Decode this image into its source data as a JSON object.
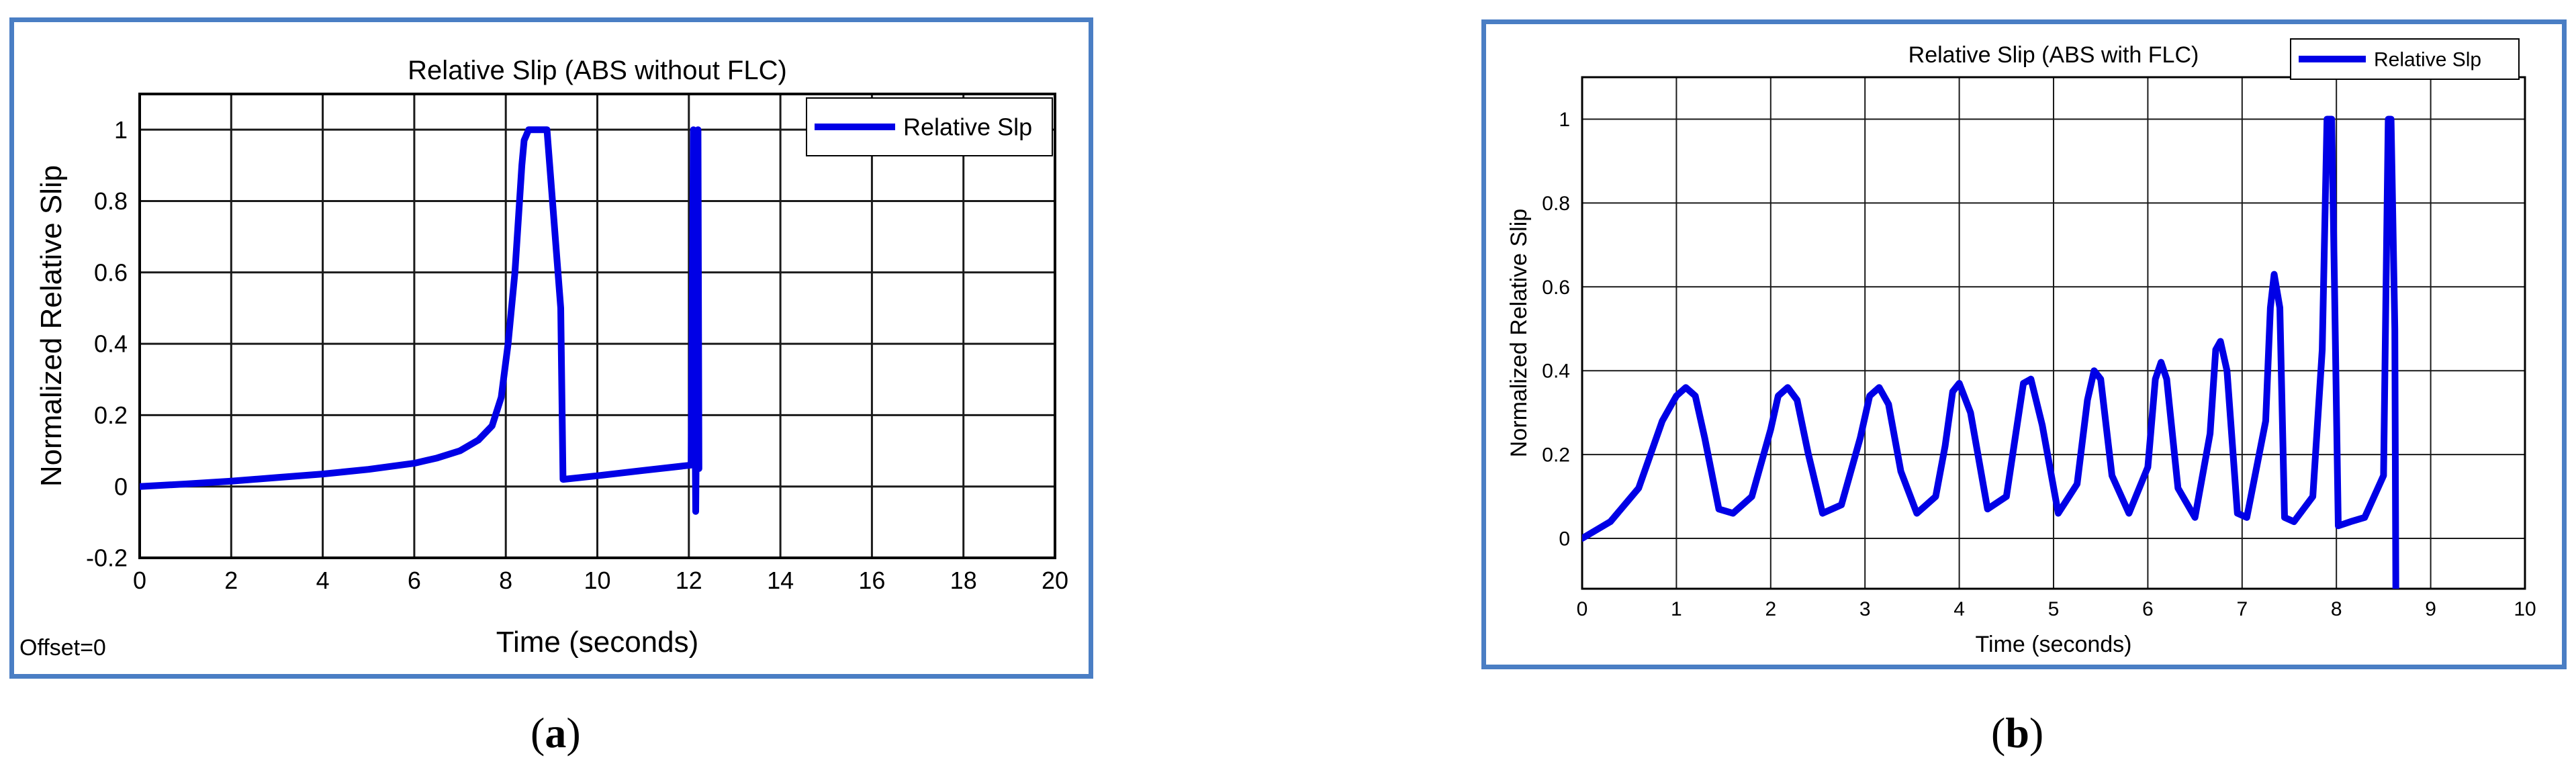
{
  "chart_data": [
    {
      "type": "line",
      "title": "Relative Slip (ABS without FLC)",
      "xlabel": "Time (seconds)",
      "ylabel": "Normalized Relative Slip",
      "xlim": [
        0,
        20
      ],
      "ylim": [
        -0.2,
        1.1
      ],
      "xticks": [
        0,
        2,
        4,
        6,
        8,
        10,
        12,
        14,
        16,
        18,
        20
      ],
      "yticks": [
        -0.2,
        0,
        0.2,
        0.4,
        0.6,
        0.8,
        1
      ],
      "grid": true,
      "legend_position": "top-right",
      "footnote": "Offset=0",
      "series": [
        {
          "name": "Relative Slp",
          "color": "#0000e6",
          "x": [
            0,
            1,
            2,
            3,
            4,
            5,
            6,
            6.5,
            7,
            7.4,
            7.7,
            7.9,
            8.05,
            8.2,
            8.35,
            8.4,
            8.5,
            8.9,
            9.2,
            9.25,
            10,
            11,
            12.05,
            12.1,
            12.12,
            12.15,
            12.17,
            12.2,
            12.22
          ],
          "y": [
            0,
            0.007,
            0.015,
            0.025,
            0.035,
            0.048,
            0.065,
            0.08,
            0.1,
            0.13,
            0.17,
            0.25,
            0.4,
            0.6,
            0.9,
            0.97,
            1,
            1,
            0.5,
            0.02,
            0.03,
            0.045,
            0.06,
            1,
            0.4,
            -0.07,
            0.23,
            1,
            0.05
          ]
        }
      ]
    },
    {
      "type": "line",
      "title": "Relative Slip (ABS with FLC)",
      "xlabel": "Time (seconds)",
      "ylabel": "Normalized Relative Slip",
      "xlim": [
        0,
        10
      ],
      "ylim": [
        -0.12,
        1.1
      ],
      "xticks": [
        0,
        1,
        2,
        3,
        4,
        5,
        6,
        7,
        8,
        9,
        10
      ],
      "yticks": [
        0,
        0.2,
        0.4,
        0.6,
        0.8,
        1
      ],
      "grid": true,
      "legend_position": "top-right",
      "series": [
        {
          "name": "Relative Slp",
          "color": "#0000e6",
          "x": [
            0,
            0.3,
            0.6,
            0.85,
            1.0,
            1.1,
            1.2,
            1.3,
            1.45,
            1.6,
            1.8,
            2.0,
            2.08,
            2.18,
            2.28,
            2.4,
            2.55,
            2.75,
            2.95,
            3.05,
            3.15,
            3.25,
            3.38,
            3.55,
            3.75,
            3.85,
            3.93,
            4.0,
            4.12,
            4.3,
            4.5,
            4.6,
            4.68,
            4.76,
            4.88,
            5.05,
            5.25,
            5.36,
            5.43,
            5.5,
            5.62,
            5.8,
            6.0,
            6.08,
            6.14,
            6.2,
            6.32,
            6.5,
            6.66,
            6.72,
            6.77,
            6.84,
            6.95,
            7.05,
            7.25,
            7.3,
            7.34,
            7.4,
            7.45,
            7.55,
            7.75,
            7.85,
            7.9,
            7.95,
            7.98,
            8.02,
            8.15,
            8.3,
            8.5,
            8.55,
            8.58,
            8.62,
            8.63
          ],
          "y": [
            0,
            0.04,
            0.12,
            0.28,
            0.34,
            0.36,
            0.34,
            0.24,
            0.07,
            0.06,
            0.1,
            0.26,
            0.34,
            0.36,
            0.33,
            0.2,
            0.06,
            0.08,
            0.24,
            0.34,
            0.36,
            0.32,
            0.16,
            0.06,
            0.1,
            0.22,
            0.35,
            0.37,
            0.3,
            0.07,
            0.1,
            0.25,
            0.37,
            0.38,
            0.27,
            0.06,
            0.13,
            0.33,
            0.4,
            0.38,
            0.15,
            0.06,
            0.17,
            0.38,
            0.42,
            0.38,
            0.12,
            0.05,
            0.25,
            0.45,
            0.47,
            0.4,
            0.06,
            0.05,
            0.28,
            0.55,
            0.63,
            0.55,
            0.05,
            0.04,
            0.1,
            0.45,
            1,
            1,
            0.6,
            0.03,
            0.04,
            0.05,
            0.15,
            1,
            1,
            0.5,
            -0.12
          ]
        }
      ]
    }
  ],
  "captions": {
    "a": {
      "open": "(",
      "letter": "a",
      "close": ")"
    },
    "b": {
      "open": "(",
      "letter": "b",
      "close": ")"
    }
  }
}
